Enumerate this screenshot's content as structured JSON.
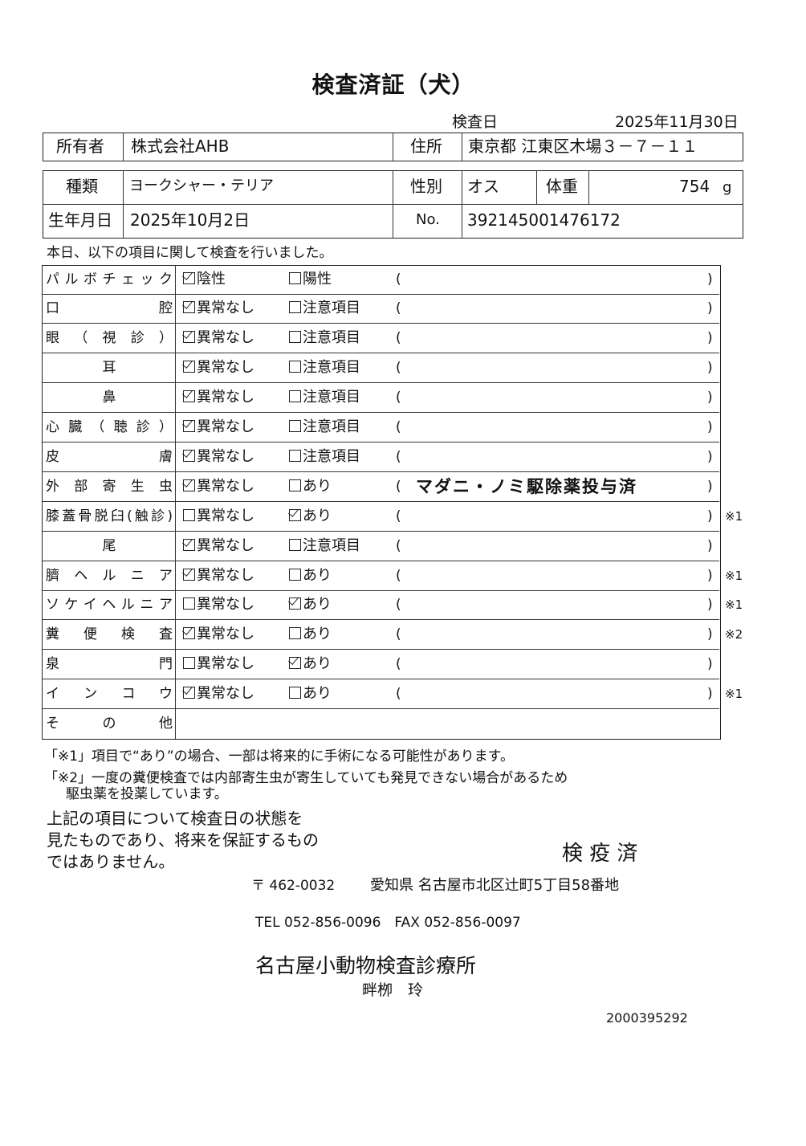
{
  "title": "検査済証（犬）",
  "exam_date_label": "検査日",
  "exam_date": "2025年11月30日",
  "owner": {
    "label": "所有者",
    "value": "株式会社AHB",
    "address_label": "住所",
    "address": "東京都 江東区木場３－７－１１"
  },
  "animal": {
    "breed_label": "種類",
    "breed": "ヨークシャー・テリア",
    "sex_label": "性別",
    "sex": "オス",
    "weight_label": "体重",
    "weight": "754",
    "weight_unit": "g",
    "birth_label": "生年月日",
    "birth": "2025年10月2日",
    "no_label": "No.",
    "no": "392145001476172"
  },
  "intro": "本日、以下の項目に関して検査を行いました。",
  "rows": [
    {
      "label": "パルボチェック",
      "opt1": "陰性",
      "opt2": "陽性",
      "checked": 1,
      "remark": "",
      "note": ""
    },
    {
      "label": "口腔",
      "opt1": "異常なし",
      "opt2": "注意項目",
      "checked": 1,
      "remark": "",
      "note": ""
    },
    {
      "label": "眼（視診）",
      "opt1": "異常なし",
      "opt2": "注意項目",
      "checked": 1,
      "remark": "",
      "note": ""
    },
    {
      "label": "耳",
      "opt1": "異常なし",
      "opt2": "注意項目",
      "checked": 1,
      "remark": "",
      "note": ""
    },
    {
      "label": "鼻",
      "opt1": "異常なし",
      "opt2": "注意項目",
      "checked": 1,
      "remark": "",
      "note": ""
    },
    {
      "label": "心臓（聴診）",
      "opt1": "異常なし",
      "opt2": "注意項目",
      "checked": 1,
      "remark": "",
      "note": ""
    },
    {
      "label": "皮膚",
      "opt1": "異常なし",
      "opt2": "注意項目",
      "checked": 1,
      "remark": "",
      "note": ""
    },
    {
      "label": "外部寄生虫",
      "opt1": "異常なし",
      "opt2": "あり",
      "checked": 1,
      "remark": "マダニ・ノミ駆除薬投与済",
      "note": ""
    },
    {
      "label": "膝蓋骨脱臼(触診)",
      "opt1": "異常なし",
      "opt2": "あり",
      "checked": 2,
      "remark": "",
      "note": "※1"
    },
    {
      "label": "尾",
      "opt1": "異常なし",
      "opt2": "注意項目",
      "checked": 1,
      "remark": "",
      "note": ""
    },
    {
      "label": "臍ヘルニア",
      "opt1": "異常なし",
      "opt2": "あり",
      "checked": 1,
      "remark": "",
      "note": "※1"
    },
    {
      "label": "ソケイヘルニア",
      "opt1": "異常なし",
      "opt2": "あり",
      "checked": 2,
      "remark": "",
      "note": "※1"
    },
    {
      "label": "糞便検査",
      "opt1": "異常なし",
      "opt2": "あり",
      "checked": 1,
      "remark": "",
      "note": "※2"
    },
    {
      "label": "泉門",
      "opt1": "異常なし",
      "opt2": "あり",
      "checked": 2,
      "remark": "",
      "note": ""
    },
    {
      "label": "インコウ",
      "opt1": "異常なし",
      "opt2": "あり",
      "checked": 1,
      "remark": "",
      "note": "※1"
    }
  ],
  "other_label": "その他",
  "footnote1": "「※1」項目で“あり”の場合、一部は将来的に手術になる可能性があります。",
  "footnote2a": "「※2」一度の糞便検査では内部寄生虫が寄生していても発見できない場合があるため",
  "footnote2b": "駆虫薬を投薬しています。",
  "disclaimer": [
    "上記の項目について検査日の状態を",
    "見たものであり、将来を保証するもの",
    "ではありません。"
  ],
  "stamp": "検 疫 済",
  "clinic": {
    "postal": "〒 462-0032",
    "address": "愛知県 名古屋市北区辻町5丁目58番地",
    "tel": "TEL 052-856-0096　FAX 052-856-0097",
    "name": "名古屋小動物検査診療所",
    "doctor": "畔栁　玲"
  },
  "doc_no": "2000395292"
}
